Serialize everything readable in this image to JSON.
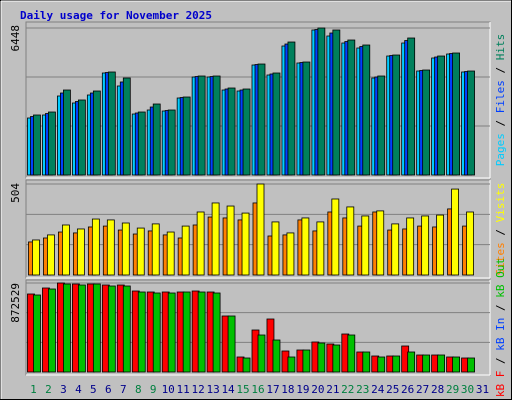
{
  "chart_data": [
    {
      "type": "bar",
      "title": "Daily usage for November 2025",
      "legend_reverse": true,
      "ylim": [
        0,
        6448
      ],
      "yticks": [
        6448
      ],
      "grid_divisions": 3,
      "series": [
        {
          "name": "Hits",
          "color": "#00805c",
          "values": [
            2632,
            2763,
            3728,
            3290,
            3684,
            4518,
            4255,
            2763,
            3114,
            2851,
            3421,
            4342,
            4342,
            3816,
            3772,
            4868,
            4474,
            5833,
            4956,
            6448,
            6360,
            5921,
            5702,
            4342,
            5263,
            6009,
            4605,
            5219,
            5351,
            4561,
            null
          ]
        },
        {
          "name": "Files",
          "color": "#0040ff",
          "values": [
            2566,
            2697,
            3596,
            3224,
            3596,
            4496,
            4080,
            2719,
            2982,
            2829,
            3399,
            4320,
            4320,
            3772,
            3728,
            4846,
            4430,
            5745,
            4934,
            6382,
            6228,
            5855,
            5636,
            4298,
            5241,
            5899,
            4583,
            5175,
            5329,
            4539,
            null
          ]
        },
        {
          "name": "Pages",
          "color": "#00ccff",
          "values": [
            2500,
            2632,
            3465,
            3158,
            3509,
            4474,
            3904,
            2675,
            2851,
            2807,
            3377,
            4298,
            4298,
            3728,
            3684,
            4825,
            4386,
            5658,
            4912,
            6360,
            6097,
            5789,
            5570,
            4254,
            5219,
            5789,
            4561,
            5132,
            5307,
            4518,
            null
          ]
        }
      ]
    },
    {
      "type": "bar",
      "legend_reverse": true,
      "ylim": [
        0,
        504
      ],
      "yticks": [
        504
      ],
      "grid_divisions": 3,
      "series": [
        {
          "name": "Visits",
          "color": "#ffff00",
          "values": [
            194,
            222,
            277,
            255,
            310,
            305,
            288,
            260,
            283,
            238,
            271,
            349,
            399,
            382,
            343,
            504,
            294,
            233,
            316,
            294,
            421,
            377,
            327,
            355,
            283,
            316,
            327,
            332,
            476,
            349,
            null
          ]
        },
        {
          "name": "Sites",
          "color": "#ff8000",
          "values": [
            183,
            205,
            238,
            233,
            266,
            271,
            249,
            227,
            244,
            222,
            205,
            277,
            321,
            316,
            305,
            399,
            216,
            222,
            305,
            244,
            349,
            316,
            271,
            349,
            249,
            255,
            271,
            266,
            366,
            271,
            null
          ]
        }
      ]
    },
    {
      "type": "bar",
      "legend_reverse": false,
      "ylim": [
        0,
        872529
      ],
      "yticks": [
        872529
      ],
      "grid_divisions": 3,
      "categories": [
        "1",
        "2",
        "3",
        "4",
        "5",
        "6",
        "7",
        "8",
        "9",
        "10",
        "11",
        "12",
        "13",
        "14",
        "15",
        "16",
        "17",
        "18",
        "19",
        "20",
        "21",
        "22",
        "23",
        "24",
        "25",
        "26",
        "27",
        "28",
        "29",
        "30",
        "31"
      ],
      "category_colors": [
        "#008040",
        "#008040",
        "#00008b",
        "#00008b",
        "#00008b",
        "#00008b",
        "#00008b",
        "#008040",
        "#008040",
        "#00008b",
        "#00008b",
        "#00008b",
        "#00008b",
        "#00008b",
        "#008040",
        "#008040",
        "#00008b",
        "#00008b",
        "#00008b",
        "#00008b",
        "#00008b",
        "#008040",
        "#008040",
        "#00008b",
        "#00008b",
        "#00008b",
        "#00008b",
        "#00008b",
        "#008040",
        "#008040",
        "#00008b"
      ],
      "series": [
        {
          "name": "kB F",
          "color": "#ff0000",
          "values": [
            764712,
            823536,
            872529,
            862752,
            862752,
            852948,
            852948,
            794124,
            784320,
            784320,
            784320,
            794124,
            784320,
            549024,
            147060,
            411768,
            519612,
            205884,
            215688,
            294120,
            274512,
            372552,
            196080,
            156864,
            156864,
            254904,
            166668,
            166668,
            147060,
            137256,
            null
          ]
        },
        {
          "name": "kB In",
          "color": "#0040ff",
          "values": [
            null,
            null,
            null,
            null,
            null,
            null,
            null,
            null,
            null,
            null,
            null,
            null,
            null,
            null,
            null,
            null,
            null,
            null,
            null,
            null,
            null,
            null,
            null,
            null,
            null,
            null,
            null,
            null,
            null,
            null,
            null
          ]
        },
        {
          "name": "kB Out",
          "color": "#00c000",
          "values": [
            754908,
            813732,
            862752,
            852948,
            862752,
            843144,
            843144,
            784320,
            774516,
            774516,
            784320,
            784320,
            774516,
            549024,
            137256,
            362748,
            313728,
            147060,
            215688,
            284316,
            264708,
            362748,
            196080,
            147060,
            156864,
            196080,
            166668,
            166668,
            147060,
            137256,
            null
          ]
        }
      ]
    }
  ],
  "legend_separator": " / "
}
